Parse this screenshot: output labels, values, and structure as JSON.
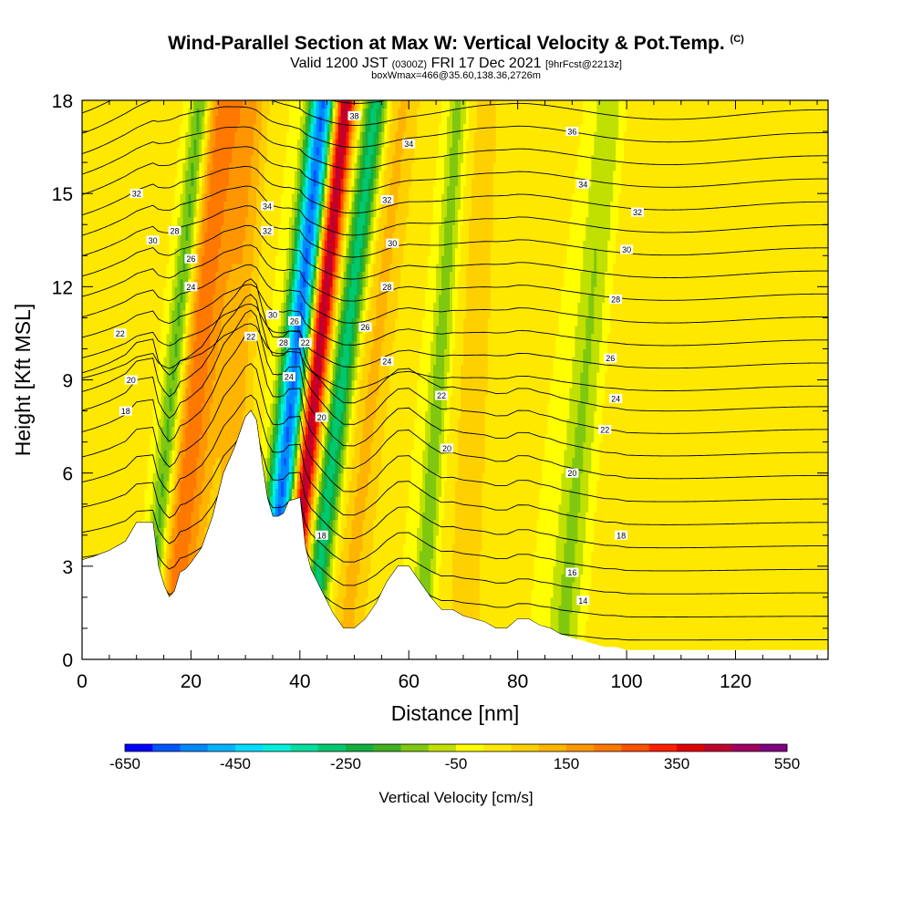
{
  "header": {
    "title": "Wind-Parallel Section at Max W: Vertical Velocity & Pot.Temp.",
    "title_mark": "(C)",
    "valid_prefix": "Valid 1200 JST",
    "valid_utc": "(0300Z)",
    "valid_date": "FRI 17 Dec 2021",
    "forecast_info": "[9hrFcst@2213z]",
    "box_info": "boxWmax=466@35.60,138.36,2726m"
  },
  "chart_data": {
    "type": "heatmap",
    "xlabel": "Distance [nm]",
    "ylabel": "Height [Kft MSL]",
    "xlim": [
      0,
      137
    ],
    "ylim": [
      0,
      18
    ],
    "x_ticks": [
      0,
      20,
      40,
      60,
      80,
      100,
      120
    ],
    "y_ticks": [
      0,
      3,
      6,
      9,
      12,
      15,
      18
    ],
    "terrain": {
      "x": [
        0,
        2,
        5,
        8,
        10,
        13,
        14,
        15,
        16,
        17,
        18,
        19,
        20,
        22,
        24,
        26,
        28,
        30,
        31,
        32,
        33,
        34,
        35,
        36,
        37,
        38,
        40,
        41,
        42,
        44,
        46,
        48,
        50,
        52,
        54,
        56,
        58,
        60,
        62,
        64,
        66,
        68,
        70,
        72,
        74,
        76,
        78,
        80,
        82,
        84,
        86,
        88,
        90,
        92,
        94,
        96,
        98,
        100,
        102,
        104,
        106,
        108,
        110,
        112,
        114,
        116,
        118,
        120,
        122,
        124,
        126,
        128,
        130,
        132,
        134,
        137
      ],
      "height": [
        3.2,
        3.3,
        3.5,
        3.8,
        4.4,
        4.4,
        3.0,
        2.4,
        2.0,
        2.2,
        2.8,
        2.9,
        3.1,
        3.6,
        4.6,
        6.0,
        6.8,
        7.8,
        8.0,
        7.7,
        6.4,
        5.2,
        4.6,
        4.6,
        4.7,
        5.1,
        5.2,
        3.6,
        2.9,
        2.2,
        1.5,
        1.0,
        1.0,
        1.3,
        1.8,
        2.5,
        3.0,
        3.0,
        2.5,
        2.0,
        1.6,
        1.6,
        1.4,
        1.3,
        1.2,
        1.0,
        1.0,
        1.3,
        1.3,
        1.1,
        1.0,
        0.8,
        0.7,
        0.6,
        0.5,
        0.4,
        0.4,
        0.3,
        0.3,
        0.3,
        0.3,
        0.3,
        0.3,
        0.3,
        0.3,
        0.3,
        0.3,
        0.3,
        0.3,
        0.3,
        0.3,
        0.3,
        0.3,
        0.3,
        0.3,
        0.3
      ]
    },
    "velocity_bands": [
      {
        "center_x": 16,
        "tilt": 0.55,
        "half_width": 4.5,
        "w": 230
      },
      {
        "center_x": 12,
        "tilt": 0.55,
        "half_width": 2.0,
        "w": -250
      },
      {
        "center_x": 33.5,
        "tilt": 0.6,
        "half_width": 2.4,
        "w": -560
      },
      {
        "center_x": 37.5,
        "tilt": 0.6,
        "half_width": 2.0,
        "w": 470
      },
      {
        "center_x": 41.5,
        "tilt": 0.7,
        "half_width": 2.3,
        "w": -280
      },
      {
        "center_x": 26,
        "tilt": 0.3,
        "half_width": 3.0,
        "w": 120
      },
      {
        "center_x": 48,
        "tilt": 0.6,
        "half_width": 3.5,
        "w": 110
      },
      {
        "center_x": 62,
        "tilt": 0.4,
        "half_width": 2.0,
        "w": -150
      },
      {
        "center_x": 88,
        "tilt": 0.5,
        "half_width": 3.0,
        "w": -120
      },
      {
        "center_x": 70,
        "tilt": 0.2,
        "half_width": 6.0,
        "w": 60
      },
      {
        "center_x": 100,
        "tilt": 0.1,
        "half_width": 8.0,
        "w": 40
      }
    ],
    "isentropes": [
      12,
      13,
      14,
      15,
      16,
      17,
      18,
      19,
      20,
      21,
      22,
      23,
      24,
      25,
      26,
      27,
      28,
      29,
      30,
      31,
      32,
      33,
      34,
      35,
      36,
      37,
      38
    ],
    "isentrope_labels": [
      {
        "value": "38",
        "x": 50,
        "y": 17.5
      },
      {
        "value": "36",
        "x": 90,
        "y": 17.0
      },
      {
        "value": "34",
        "x": 60,
        "y": 16.6
      },
      {
        "value": "34",
        "x": 92,
        "y": 15.3
      },
      {
        "value": "32",
        "x": 10,
        "y": 15.0
      },
      {
        "value": "32",
        "x": 56,
        "y": 14.8
      },
      {
        "value": "32",
        "x": 102,
        "y": 14.4
      },
      {
        "value": "34",
        "x": 34,
        "y": 14.6
      },
      {
        "value": "32",
        "x": 34,
        "y": 13.8
      },
      {
        "value": "30",
        "x": 13,
        "y": 13.5
      },
      {
        "value": "28",
        "x": 17,
        "y": 13.8
      },
      {
        "value": "26",
        "x": 20,
        "y": 12.9
      },
      {
        "value": "24",
        "x": 20,
        "y": 12.0
      },
      {
        "value": "30",
        "x": 57,
        "y": 13.4
      },
      {
        "value": "30",
        "x": 100,
        "y": 13.2
      },
      {
        "value": "28",
        "x": 56,
        "y": 12.0
      },
      {
        "value": "28",
        "x": 98,
        "y": 11.6
      },
      {
        "value": "30",
        "x": 35,
        "y": 11.1
      },
      {
        "value": "26",
        "x": 39,
        "y": 10.9
      },
      {
        "value": "26",
        "x": 52,
        "y": 10.7
      },
      {
        "value": "22",
        "x": 7,
        "y": 10.5
      },
      {
        "value": "22",
        "x": 31,
        "y": 10.4
      },
      {
        "value": "28",
        "x": 37,
        "y": 10.2
      },
      {
        "value": "22",
        "x": 41,
        "y": 10.2
      },
      {
        "value": "24",
        "x": 56,
        "y": 9.6
      },
      {
        "value": "26",
        "x": 97,
        "y": 9.7
      },
      {
        "value": "24",
        "x": 38,
        "y": 9.1
      },
      {
        "value": "20",
        "x": 9,
        "y": 9.0
      },
      {
        "value": "22",
        "x": 66,
        "y": 8.5
      },
      {
        "value": "24",
        "x": 98,
        "y": 8.4
      },
      {
        "value": "18",
        "x": 8,
        "y": 8.0
      },
      {
        "value": "20",
        "x": 44,
        "y": 7.8
      },
      {
        "value": "22",
        "x": 96,
        "y": 7.4
      },
      {
        "value": "20",
        "x": 67,
        "y": 6.8
      },
      {
        "value": "20",
        "x": 90,
        "y": 6.0
      },
      {
        "value": "18",
        "x": 44,
        "y": 4.0
      },
      {
        "value": "18",
        "x": 99,
        "y": 4.0
      },
      {
        "value": "16",
        "x": 90,
        "y": 2.8
      },
      {
        "value": "14",
        "x": 92,
        "y": 1.9
      }
    ],
    "colorbar": {
      "title": "Vertical Velocity [cm/s]",
      "min": -650,
      "max": 550,
      "step": 50,
      "tick_labels": [
        "-650",
        "-450",
        "-250",
        "-50",
        "150",
        "350",
        "550"
      ],
      "tick_values": [
        -650,
        -450,
        -250,
        -50,
        150,
        350,
        550
      ],
      "colors": [
        "#0000ff",
        "#0055ff",
        "#0088ff",
        "#00b4ff",
        "#00dcff",
        "#00f0dc",
        "#00e0a0",
        "#00c870",
        "#10b040",
        "#40b020",
        "#80c810",
        "#c0e000",
        "#ffff00",
        "#ffe800",
        "#ffd000",
        "#ffb400",
        "#ff9600",
        "#ff7800",
        "#ff5000",
        "#ff2000",
        "#e00000",
        "#c00030",
        "#a00060",
        "#800080"
      ]
    }
  }
}
